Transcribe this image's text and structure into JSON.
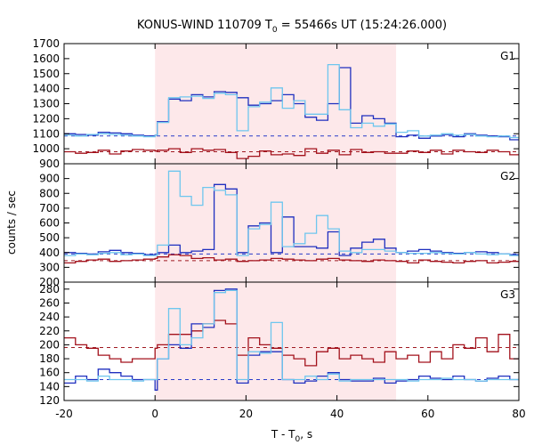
{
  "chart_data": {
    "type": "line",
    "title": "KONUS-WIND 110709 T",
    "title_sub": "0",
    "title_rest": " = 55466s UT (15:24:26.000)",
    "xlabel": "T - T",
    "xlabel_sub": "0",
    "xlabel_rest": ", s",
    "ylabel": "counts / sec",
    "xlim": [
      -20,
      80
    ],
    "x_ticks": [
      "-20",
      "0",
      "20",
      "40",
      "60",
      "80"
    ],
    "shaded_interval": [
      0,
      53
    ],
    "colors": {
      "shade": "#fde8ea",
      "dark_blue": "#1f2fbf",
      "light_blue": "#6ec6ee",
      "dark_red": "#a3121c",
      "pink": "#e08ad6",
      "bg_dash_blue": "#2a3bc8",
      "bg_dash_red": "#a01a22"
    },
    "panels": [
      {
        "label": "G1",
        "ylim": [
          900,
          1700
        ],
        "y_ticks": [
          900,
          1000,
          1100,
          1200,
          1300,
          1400,
          1500,
          1600,
          1700
        ],
        "y_tick_labels": [
          "900",
          "1000",
          "1100",
          "1200",
          "1300",
          "1400",
          "1500",
          "1600",
          "1700"
        ],
        "background_level_blue": 1085,
        "background_level_red": 980,
        "series": [
          {
            "color_key": "dark_blue",
            "edges": [
              -20,
              -17.5,
              -15,
              -12.5,
              -10,
              -7.5,
              -5,
              -2.5,
              0,
              0.5,
              3,
              5.5,
              8,
              10.5,
              13,
              15.5,
              18,
              20.5,
              23,
              25.5,
              28,
              30.5,
              33,
              35.5,
              38,
              40.5,
              43,
              45.5,
              48,
              50.5,
              53,
              55.5,
              58,
              60.5,
              63,
              65.5,
              68,
              70.5,
              73,
              75.5,
              78,
              80
            ],
            "values": [
              1100,
              1095,
              1090,
              1110,
              1105,
              1100,
              1090,
              1085,
              1090,
              1180,
              1330,
              1320,
              1360,
              1345,
              1380,
              1375,
              1340,
              1290,
              1300,
              1320,
              1360,
              1300,
              1210,
              1190,
              1300,
              1540,
              1170,
              1220,
              1200,
              1170,
              1080,
              1090,
              1070,
              1085,
              1095,
              1080,
              1100,
              1090,
              1085,
              1080,
              1060
            ]
          },
          {
            "color_key": "light_blue",
            "edges": [
              -20,
              -17.5,
              -15,
              -12.5,
              -10,
              -7.5,
              -5,
              -2.5,
              0,
              0.5,
              3,
              5.5,
              8,
              10.5,
              13,
              15.5,
              18,
              20.5,
              23,
              25.5,
              28,
              30.5,
              33,
              35.5,
              38,
              40.5,
              43,
              45.5,
              48,
              50.5,
              53,
              55.5,
              58,
              60.5,
              63,
              65.5,
              68,
              70.5,
              73,
              75.5,
              78,
              80
            ],
            "values": [
              1090,
              1085,
              1095,
              1100,
              1095,
              1090,
              1085,
              1080,
              1090,
              1175,
              1340,
              1345,
              1350,
              1335,
              1370,
              1360,
              1120,
              1280,
              1310,
              1405,
              1270,
              1320,
              1230,
              1230,
              1560,
              1260,
              1140,
              1170,
              1150,
              1165,
              1110,
              1120,
              1085,
              1090,
              1100,
              1090,
              1095,
              1085,
              1080,
              1085,
              1075
            ]
          },
          {
            "color_key": "dark_red",
            "edges": [
              -20,
              -17.5,
              -15,
              -12.5,
              -10,
              -7.5,
              -5,
              -2.5,
              0,
              0.5,
              3,
              5.5,
              8,
              10.5,
              13,
              15.5,
              18,
              20.5,
              23,
              25.5,
              28,
              30.5,
              33,
              35.5,
              38,
              40.5,
              43,
              45.5,
              48,
              50.5,
              53,
              55.5,
              58,
              60.5,
              63,
              65.5,
              68,
              70.5,
              73,
              75.5,
              78,
              80
            ],
            "values": [
              980,
              970,
              975,
              990,
              965,
              985,
              995,
              990,
              985,
              990,
              1000,
              975,
              1000,
              990,
              995,
              975,
              935,
              950,
              985,
              960,
              965,
              955,
              1000,
              970,
              990,
              960,
              995,
              975,
              980,
              970,
              970,
              985,
              975,
              990,
              965,
              990,
              980,
              975,
              990,
              980,
              960
            ]
          }
        ]
      },
      {
        "label": "G2",
        "ylim": [
          200,
          1000
        ],
        "y_ticks": [
          200,
          300,
          400,
          500,
          600,
          700,
          800,
          900
        ],
        "y_tick_labels": [
          "200",
          "300",
          "400",
          "500",
          "600",
          "700",
          "800",
          "900"
        ],
        "background_level_blue": 390,
        "background_level_red": 345,
        "series": [
          {
            "color_key": "dark_blue",
            "edges": [
              -20,
              -17.5,
              -15,
              -12.5,
              -10,
              -7.5,
              -5,
              -2.5,
              0,
              0.5,
              3,
              5.5,
              8,
              10.5,
              13,
              15.5,
              18,
              20.5,
              23,
              25.5,
              28,
              30.5,
              33,
              35.5,
              38,
              40.5,
              43,
              45.5,
              48,
              50.5,
              53,
              55.5,
              58,
              60.5,
              63,
              65.5,
              68,
              70.5,
              73,
              75.5,
              78,
              80
            ],
            "values": [
              400,
              395,
              390,
              405,
              415,
              400,
              395,
              385,
              390,
              400,
              450,
              400,
              410,
              420,
              860,
              830,
              400,
              580,
              600,
              400,
              640,
              440,
              440,
              430,
              540,
              380,
              430,
              470,
              490,
              430,
              400,
              410,
              420,
              410,
              400,
              395,
              400,
              405,
              400,
              390,
              385
            ]
          },
          {
            "color_key": "light_blue",
            "edges": [
              -20,
              -17.5,
              -15,
              -12.5,
              -10,
              -7.5,
              -5,
              -2.5,
              0,
              0.5,
              3,
              5.5,
              8,
              10.5,
              13,
              15.5,
              18,
              20.5,
              23,
              25.5,
              28,
              30.5,
              33,
              35.5,
              38,
              40.5,
              43,
              45.5,
              48,
              50.5,
              53,
              55.5,
              58,
              60.5,
              63,
              65.5,
              68,
              70.5,
              73,
              75.5,
              78,
              80
            ],
            "values": [
              380,
              390,
              385,
              395,
              400,
              385,
              390,
              380,
              380,
              450,
              950,
              780,
              720,
              840,
              820,
              790,
              380,
              560,
              590,
              740,
              440,
              460,
              530,
              650,
              560,
              410,
              400,
              420,
              420,
              410,
              400,
              395,
              395,
              400,
              395,
              390,
              400,
              390,
              385,
              390,
              380
            ]
          },
          {
            "color_key": "dark_red",
            "edges": [
              -20,
              -17.5,
              -15,
              -12.5,
              -10,
              -7.5,
              -5,
              -2.5,
              0,
              0.5,
              3,
              5.5,
              8,
              10.5,
              13,
              15.5,
              18,
              20.5,
              23,
              25.5,
              28,
              30.5,
              33,
              35.5,
              38,
              40.5,
              43,
              45.5,
              48,
              50.5,
              53,
              55.5,
              58,
              60.5,
              63,
              65.5,
              68,
              70.5,
              73,
              75.5,
              78,
              80
            ],
            "values": [
              330,
              340,
              350,
              355,
              340,
              345,
              350,
              355,
              360,
              370,
              385,
              380,
              360,
              365,
              350,
              355,
              340,
              345,
              350,
              360,
              355,
              350,
              345,
              355,
              360,
              350,
              345,
              340,
              350,
              345,
              340,
              330,
              350,
              340,
              335,
              330,
              340,
              345,
              330,
              335,
              340
            ]
          }
        ]
      },
      {
        "label": "G3",
        "ylim": [
          120,
          290
        ],
        "y_ticks": [
          120,
          140,
          160,
          180,
          200,
          220,
          240,
          260,
          280
        ],
        "y_tick_labels": [
          "120",
          "140",
          "160",
          "180",
          "200",
          "220",
          "240",
          "260",
          "280"
        ],
        "background_level_blue": 150,
        "background_level_red": 196,
        "series": [
          {
            "color_key": "dark_blue",
            "edges": [
              -20,
              -17.5,
              -15,
              -12.5,
              -10,
              -7.5,
              -5,
              -2.5,
              0,
              0.5,
              3,
              5.5,
              8,
              10.5,
              13,
              15.5,
              18,
              20.5,
              23,
              25.5,
              28,
              30.5,
              33,
              35.5,
              38,
              40.5,
              43,
              45.5,
              48,
              50.5,
              53,
              55.5,
              58,
              60.5,
              63,
              65.5,
              68,
              70.5,
              73,
              75.5,
              78,
              80
            ],
            "values": [
              145,
              155,
              150,
              165,
              160,
              155,
              150,
              150,
              135,
              180,
              200,
              195,
              230,
              225,
              278,
              280,
              145,
              185,
              190,
              190,
              150,
              145,
              148,
              155,
              160,
              150,
              148,
              148,
              152,
              145,
              148,
              150,
              155,
              152,
              150,
              155,
              150,
              148,
              152,
              155,
              150
            ]
          },
          {
            "color_key": "light_blue",
            "edges": [
              -20,
              -17.5,
              -15,
              -12.5,
              -10,
              -7.5,
              -5,
              -2.5,
              0,
              0.5,
              3,
              5.5,
              8,
              10.5,
              13,
              15.5,
              18,
              20.5,
              23,
              25.5,
              28,
              30.5,
              33,
              35.5,
              38,
              40.5,
              43,
              45.5,
              48,
              50.5,
              53,
              55.5,
              58,
              60.5,
              63,
              65.5,
              68,
              70.5,
              73,
              75.5,
              78,
              80
            ],
            "values": [
              150,
              150,
              148,
              155,
              150,
              150,
              148,
              150,
              150,
              180,
              252,
              200,
              210,
              230,
              275,
              278,
              150,
              190,
              188,
              232,
              150,
              150,
              155,
              150,
              158,
              148,
              150,
              150,
              150,
              150,
              150,
              148,
              150,
              150,
              152,
              150,
              150,
              148,
              150,
              150,
              150
            ]
          },
          {
            "color_key": "dark_red",
            "edges": [
              -20,
              -17.5,
              -15,
              -12.5,
              -10,
              -7.5,
              -5,
              -2.5,
              0,
              0.5,
              3,
              5.5,
              8,
              10.5,
              13,
              15.5,
              18,
              20.5,
              23,
              25.5,
              28,
              30.5,
              33,
              35.5,
              38,
              40.5,
              43,
              45.5,
              48,
              50.5,
              53,
              55.5,
              58,
              60.5,
              63,
              65.5,
              68,
              70.5,
              73,
              75.5,
              78,
              80
            ],
            "values": [
              210,
              200,
              195,
              185,
              180,
              175,
              180,
              180,
              195,
              200,
              215,
              215,
              220,
              230,
              235,
              230,
              185,
              210,
              200,
              195,
              185,
              180,
              170,
              190,
              195,
              180,
              185,
              180,
              175,
              190,
              180,
              185,
              175,
              190,
              180,
              200,
              195,
              210,
              190,
              215,
              180
            ]
          }
        ]
      }
    ]
  }
}
